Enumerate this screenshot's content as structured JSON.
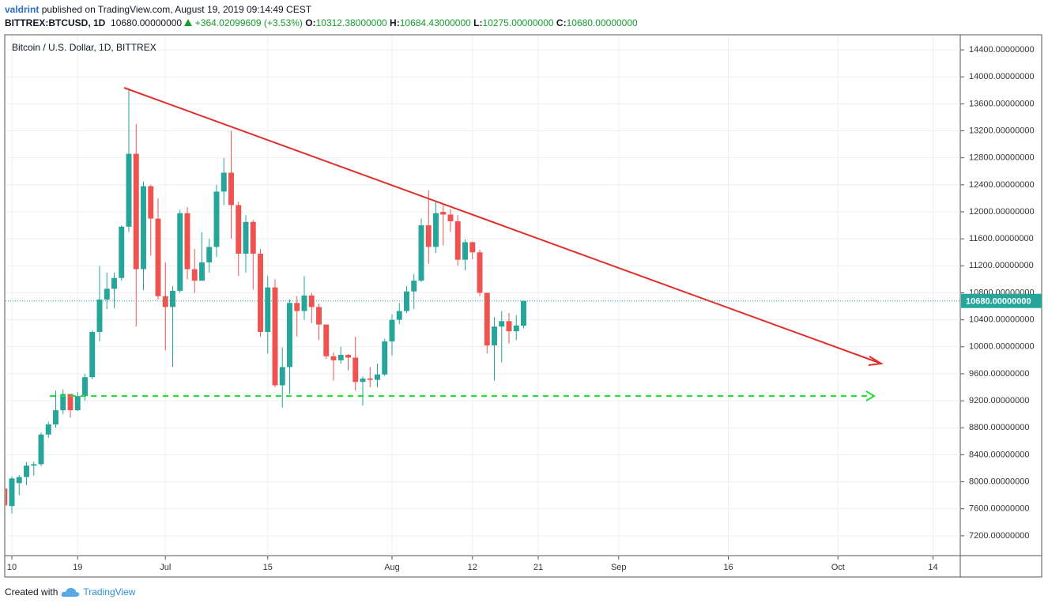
{
  "header": {
    "author": "valdrint",
    "published": "published on TradingView.com, August 19, 2019 09:14:49 CEST",
    "symbol": "BITTREX:BTCUSD, 1D",
    "price": "10680.00000000",
    "change": "+364.02099609 (+3.53%)",
    "ohlc": [
      {
        "label": "O:",
        "value": "10312.38000000"
      },
      {
        "label": "H:",
        "value": "10684.43000000"
      },
      {
        "label": "L:",
        "value": "10275.00000000"
      },
      {
        "label": "C:",
        "value": "10680.00000000"
      }
    ]
  },
  "chart_data": {
    "type": "candlestick",
    "title": "Bitcoin / U.S. Dollar, 1D, BITTREX",
    "x": [
      "06-09",
      "06-10",
      "06-11",
      "06-12",
      "06-13",
      "06-14",
      "06-15",
      "06-16",
      "06-17",
      "06-18",
      "06-19",
      "06-20",
      "06-21",
      "06-22",
      "06-23",
      "06-24",
      "06-25",
      "06-26",
      "06-27",
      "06-28",
      "06-29",
      "06-30",
      "07-01",
      "07-02",
      "07-03",
      "07-04",
      "07-05",
      "07-06",
      "07-07",
      "07-08",
      "07-09",
      "07-10",
      "07-11",
      "07-12",
      "07-13",
      "07-14",
      "07-15",
      "07-16",
      "07-17",
      "07-18",
      "07-19",
      "07-20",
      "07-21",
      "07-22",
      "07-23",
      "07-24",
      "07-25",
      "07-26",
      "07-27",
      "07-28",
      "07-29",
      "07-30",
      "07-31",
      "08-01",
      "08-02",
      "08-03",
      "08-04",
      "08-05",
      "08-06",
      "08-07",
      "08-08",
      "08-09",
      "08-10",
      "08-11",
      "08-12",
      "08-13",
      "08-14",
      "08-15",
      "08-16",
      "08-17",
      "08-18",
      "08-19"
    ],
    "open": [
      7900,
      7640,
      7980,
      8070,
      8240,
      8260,
      8700,
      8850,
      9060,
      9300,
      9060,
      9270,
      9550,
      10220,
      10700,
      10860,
      11020,
      11780,
      12860,
      11150,
      12380,
      11900,
      10750,
      10590,
      10830,
      11980,
      11150,
      10980,
      11250,
      11480,
      12300,
      12580,
      12100,
      11380,
      11850,
      11380,
      10220,
      10880,
      9430,
      9700,
      10650,
      10530,
      10760,
      10590,
      10330,
      9860,
      9800,
      9880,
      9840,
      9480,
      9530,
      9510,
      9590,
      10080,
      10400,
      10530,
      10820,
      10980,
      11800,
      11480,
      12000,
      11960,
      11860,
      11290,
      11550,
      11400,
      10800,
      10020,
      10300,
      10380,
      10230,
      10312.38
    ],
    "high": [
      8000,
      8080,
      8100,
      8290,
      8300,
      8730,
      8890,
      9350,
      9370,
      9300,
      9330,
      9600,
      10240,
      11200,
      11100,
      11100,
      11800,
      13830,
      13300,
      12450,
      12400,
      12200,
      11250,
      10900,
      12030,
      12070,
      11450,
      11700,
      11600,
      12400,
      12800,
      13200,
      12150,
      11950,
      11880,
      11450,
      11050,
      11000,
      9990,
      10700,
      10750,
      11050,
      10800,
      10640,
      10330,
      9920,
      10000,
      9890,
      10150,
      9560,
      9700,
      9750,
      10120,
      10480,
      10650,
      10900,
      11080,
      11900,
      12320,
      12150,
      12100,
      12040,
      11950,
      11590,
      11560,
      11440,
      10800,
      10440,
      10530,
      10500,
      10470,
      10684.43
    ],
    "low": [
      7520,
      7530,
      7800,
      7950,
      8090,
      8230,
      8650,
      8800,
      9000,
      8950,
      9050,
      9200,
      9520,
      10080,
      10560,
      10570,
      10980,
      11700,
      10300,
      10840,
      11350,
      10700,
      9950,
      9700,
      10800,
      11000,
      10800,
      10980,
      11100,
      11330,
      12100,
      11600,
      11050,
      11100,
      10850,
      10150,
      9900,
      9400,
      9100,
      9300,
      10150,
      10400,
      10350,
      10100,
      9820,
      9500,
      9750,
      9650,
      9350,
      9130,
      9400,
      9400,
      9570,
      9870,
      10340,
      10500,
      10560,
      10960,
      11230,
      11390,
      11500,
      11700,
      11200,
      11130,
      11300,
      10750,
      9900,
      9500,
      9770,
      10050,
      10100,
      10275
    ],
    "close": [
      7650,
      8050,
      8070,
      8240,
      8260,
      8700,
      8850,
      9060,
      9300,
      9060,
      9270,
      9550,
      10220,
      10700,
      10860,
      11020,
      11780,
      12860,
      11150,
      12380,
      11900,
      10750,
      10590,
      10830,
      11980,
      11150,
      10980,
      11250,
      11480,
      12300,
      12580,
      12100,
      11380,
      11850,
      11380,
      10220,
      10880,
      9430,
      9700,
      10650,
      10530,
      10760,
      10590,
      10330,
      9860,
      9800,
      9880,
      9840,
      9480,
      9530,
      9510,
      9590,
      10080,
      10400,
      10530,
      10820,
      10980,
      11800,
      11480,
      11980,
      11960,
      11860,
      11290,
      11550,
      11400,
      10800,
      10020,
      10300,
      10380,
      10230,
      10316,
      10680
    ],
    "up_color": "#26a69a",
    "down_color": "#ef5350",
    "last_label": "10680.00000000",
    "xlim": [
      "06-09",
      "10-18"
    ],
    "xticks": [
      {
        "value": "06-10",
        "label": "10"
      },
      {
        "value": "06-19",
        "label": "19"
      },
      {
        "value": "07-01",
        "label": "Jul"
      },
      {
        "value": "07-15",
        "label": "15"
      },
      {
        "value": "08-01",
        "label": "Aug"
      },
      {
        "value": "08-12",
        "label": "12"
      },
      {
        "value": "08-21",
        "label": "21"
      },
      {
        "value": "09-01",
        "label": "Sep"
      },
      {
        "value": "09-16",
        "label": "16"
      },
      {
        "value": "10-01",
        "label": "Oct"
      },
      {
        "value": "10-14",
        "label": "14"
      }
    ],
    "ylim": [
      6900,
      14600
    ],
    "yticks": [
      {
        "value": 7200,
        "label": "7200.00000000"
      },
      {
        "value": 7600,
        "label": "7600.00000000"
      },
      {
        "value": 8000,
        "label": "8000.00000000"
      },
      {
        "value": 8400,
        "label": "8400.00000000"
      },
      {
        "value": 8800,
        "label": "8800.00000000"
      },
      {
        "value": 9200,
        "label": "9200.00000000"
      },
      {
        "value": 9600,
        "label": "9600.00000000"
      },
      {
        "value": 10000,
        "label": "10000.00000000"
      },
      {
        "value": 10400,
        "label": "10400.00000000"
      },
      {
        "value": 10800,
        "label": "10800.00000000"
      },
      {
        "value": 11200,
        "label": "11200.00000000"
      },
      {
        "value": 11600,
        "label": "11600.00000000"
      },
      {
        "value": 12000,
        "label": "12000.00000000"
      },
      {
        "value": 12400,
        "label": "12400.00000000"
      },
      {
        "value": 12800,
        "label": "12800.00000000"
      },
      {
        "value": 13200,
        "label": "13200.00000000"
      },
      {
        "value": 13600,
        "label": "13600.00000000"
      },
      {
        "value": 14000,
        "label": "14000.00000000"
      },
      {
        "value": 14400,
        "label": "14400.00000000"
      }
    ],
    "grid": true
  },
  "footer": {
    "created": "Created with",
    "brand": "TradingView"
  }
}
